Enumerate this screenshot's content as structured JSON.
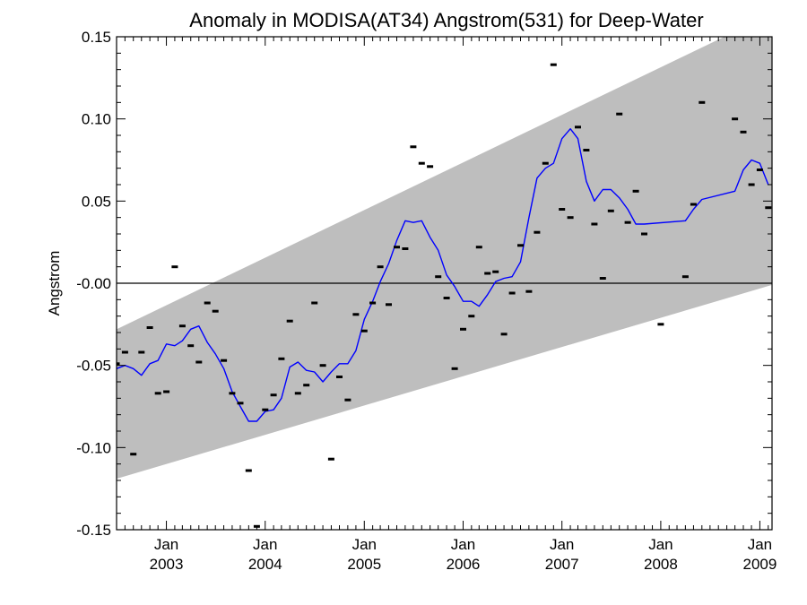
{
  "chart_data": {
    "type": "scatter",
    "title": "Anomaly in MODISA(AT34) Angstrom(531) for Deep-Water",
    "ylabel": "Angstrom",
    "xlabel": "",
    "xlim": [
      "2002-07-01",
      "2009-02-15"
    ],
    "ylim": [
      -0.15,
      0.15
    ],
    "yticks": [
      -0.15,
      -0.1,
      -0.05,
      0.0,
      0.05,
      0.1,
      0.15
    ],
    "ytick_labels": [
      "-0.15",
      "-0.10",
      "-0.05",
      "-0.00",
      "0.05",
      "0.10",
      "0.15"
    ],
    "xticks": [
      {
        "date": "2003-01-01",
        "month": "Jan",
        "year": "2003"
      },
      {
        "date": "2004-01-01",
        "month": "Jan",
        "year": "2004"
      },
      {
        "date": "2005-01-01",
        "month": "Jan",
        "year": "2005"
      },
      {
        "date": "2006-01-01",
        "month": "Jan",
        "year": "2006"
      },
      {
        "date": "2007-01-01",
        "month": "Jan",
        "year": "2007"
      },
      {
        "date": "2008-01-01",
        "month": "Jan",
        "year": "2008"
      },
      {
        "date": "2009-01-01",
        "month": "Jan",
        "year": "2009"
      }
    ],
    "zero_line": 0.0,
    "trend_band": {
      "start": {
        "date": "2002-07-01",
        "lower": -0.119,
        "upper": -0.028
      },
      "end": {
        "date": "2009-02-15",
        "lower": -0.001,
        "upper": 0.164
      },
      "color": "#bebebe"
    },
    "smooth_line": {
      "name": "",
      "color": "#0000ff",
      "x": [
        "2002-07-01",
        "2002-08-01",
        "2002-09-01",
        "2002-10-01",
        "2002-11-01",
        "2002-12-01",
        "2003-01-01",
        "2003-02-01",
        "2003-03-01",
        "2003-04-01",
        "2003-05-01",
        "2003-06-01",
        "2003-07-01",
        "2003-08-01",
        "2003-09-01",
        "2003-10-01",
        "2003-11-01",
        "2003-12-01",
        "2004-01-01",
        "2004-02-01",
        "2004-03-01",
        "2004-04-01",
        "2004-05-01",
        "2004-06-01",
        "2004-07-01",
        "2004-08-01",
        "2004-09-01",
        "2004-10-01",
        "2004-11-01",
        "2004-12-01",
        "2005-01-01",
        "2005-02-01",
        "2005-03-01",
        "2005-04-01",
        "2005-05-01",
        "2005-06-01",
        "2005-07-01",
        "2005-08-01",
        "2005-09-01",
        "2005-10-01",
        "2005-11-01",
        "2005-12-01",
        "2006-01-01",
        "2006-02-01",
        "2006-03-01",
        "2006-04-01",
        "2006-05-01",
        "2006-06-01",
        "2006-07-01",
        "2006-08-01",
        "2006-09-01",
        "2006-10-01",
        "2006-11-01",
        "2006-12-01",
        "2007-01-01",
        "2007-02-01",
        "2007-03-01",
        "2007-04-01",
        "2007-05-01",
        "2007-06-01",
        "2007-07-01",
        "2007-08-01",
        "2007-09-01",
        "2007-10-01",
        "2007-11-01",
        "2008-04-01",
        "2008-05-01",
        "2008-06-01",
        "2008-10-01",
        "2008-11-01",
        "2008-12-01",
        "2009-01-01",
        "2009-02-01"
      ],
      "y": [
        -0.052,
        -0.05,
        -0.052,
        -0.056,
        -0.049,
        -0.047,
        -0.037,
        -0.038,
        -0.035,
        -0.028,
        -0.026,
        -0.036,
        -0.043,
        -0.052,
        -0.066,
        -0.075,
        -0.084,
        -0.084,
        -0.078,
        -0.077,
        -0.07,
        -0.051,
        -0.048,
        -0.053,
        -0.054,
        -0.06,
        -0.054,
        -0.049,
        -0.049,
        -0.041,
        -0.022,
        -0.011,
        0.001,
        0.012,
        0.026,
        0.038,
        0.037,
        0.038,
        0.028,
        0.02,
        0.005,
        -0.002,
        -0.011,
        -0.011,
        -0.014,
        -0.007,
        0.001,
        0.003,
        0.004,
        0.013,
        0.04,
        0.064,
        0.07,
        0.073,
        0.088,
        0.094,
        0.088,
        0.062,
        0.05,
        0.057,
        0.057,
        0.052,
        0.045,
        0.036,
        0.036,
        0.038,
        0.045,
        0.051,
        0.056,
        0.069,
        0.075,
        0.073,
        0.06
      ]
    },
    "points": {
      "x": [
        "2002-07-01",
        "2002-08-01",
        "2002-09-01",
        "2002-10-01",
        "2002-11-01",
        "2002-12-01",
        "2003-01-01",
        "2003-02-01",
        "2003-03-01",
        "2003-04-01",
        "2003-05-01",
        "2003-06-01",
        "2003-07-01",
        "2003-08-01",
        "2003-09-01",
        "2003-10-01",
        "2003-11-01",
        "2003-12-01",
        "2004-01-01",
        "2004-02-01",
        "2004-03-01",
        "2004-04-01",
        "2004-05-01",
        "2004-06-01",
        "2004-07-01",
        "2004-08-01",
        "2004-09-01",
        "2004-10-01",
        "2004-11-01",
        "2004-12-01",
        "2005-01-01",
        "2005-02-01",
        "2005-03-01",
        "2005-04-01",
        "2005-05-01",
        "2005-06-01",
        "2005-07-01",
        "2005-08-01",
        "2005-09-01",
        "2005-10-01",
        "2005-11-01",
        "2005-12-01",
        "2006-01-01",
        "2006-02-01",
        "2006-03-01",
        "2006-04-01",
        "2006-05-01",
        "2006-06-01",
        "2006-07-01",
        "2006-08-01",
        "2006-09-01",
        "2006-10-01",
        "2006-11-01",
        "2006-12-01",
        "2007-01-01",
        "2007-02-01",
        "2007-03-01",
        "2007-04-01",
        "2007-05-01",
        "2007-06-01",
        "2007-07-01",
        "2007-08-01",
        "2007-09-01",
        "2007-10-01",
        "2007-11-01",
        "2008-01-01",
        "2008-04-01",
        "2008-05-01",
        "2008-06-01",
        "2008-10-01",
        "2008-11-01",
        "2008-12-01",
        "2009-01-01",
        "2009-02-01"
      ],
      "y": [
        -0.049,
        -0.042,
        -0.104,
        -0.042,
        -0.027,
        -0.067,
        -0.066,
        0.01,
        -0.026,
        -0.038,
        -0.048,
        -0.012,
        -0.017,
        -0.047,
        -0.067,
        -0.073,
        -0.114,
        -0.148,
        -0.077,
        -0.068,
        -0.046,
        -0.023,
        -0.067,
        -0.062,
        -0.012,
        -0.05,
        -0.107,
        -0.057,
        -0.071,
        -0.019,
        -0.029,
        -0.012,
        0.01,
        -0.013,
        0.022,
        0.021,
        0.083,
        0.073,
        0.071,
        0.004,
        -0.009,
        -0.052,
        -0.028,
        -0.02,
        0.022,
        0.006,
        0.007,
        -0.031,
        -0.006,
        0.023,
        -0.005,
        0.031,
        0.073,
        0.133,
        0.045,
        0.04,
        0.095,
        0.081,
        0.036,
        0.003,
        0.044,
        0.103,
        0.037,
        0.056,
        0.03,
        -0.025,
        0.004,
        0.048,
        0.11,
        0.1,
        0.092,
        0.06,
        0.069,
        0.046
      ]
    }
  }
}
